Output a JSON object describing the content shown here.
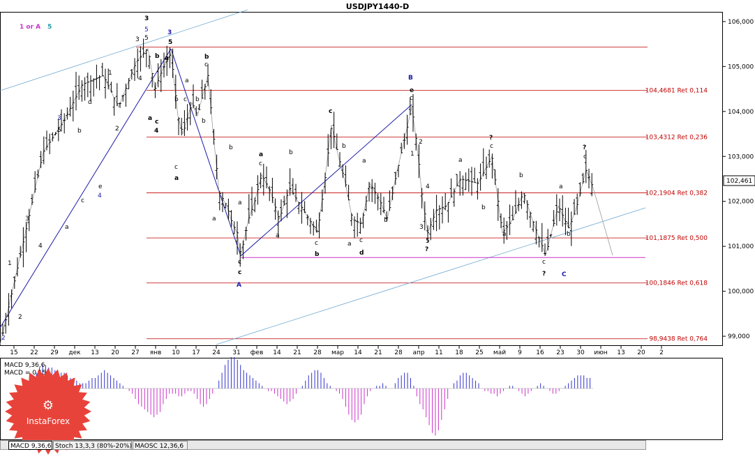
{
  "window": {
    "title": "USDJPY1440-D"
  },
  "legend_topleft": {
    "label1": "1 or A",
    "label2": "5"
  },
  "chart_data": {
    "type": "candlestick",
    "title": "USDJPY1440-D",
    "ylim": [
      98.8,
      106.2
    ],
    "y_ticks": [
      "106,000",
      "105,000",
      "104,000",
      "103,000",
      "102,000",
      "101,000",
      "100,000",
      "99,000"
    ],
    "y_tick_values": [
      106,
      105,
      104,
      103,
      102,
      101,
      100,
      99
    ],
    "current_price": "102,461",
    "current_value": 102.461,
    "x_ticks": [
      "15",
      "22",
      "29",
      "дек",
      "13",
      "20",
      "27",
      "янв",
      "10",
      "17",
      "24",
      "31",
      "фев",
      "14",
      "21",
      "28",
      "мар",
      "14",
      "21",
      "28",
      "апр",
      "11",
      "18",
      "25",
      "май",
      "9",
      "16",
      "23",
      "30",
      "июн",
      "13",
      "20",
      "2"
    ],
    "retracements": [
      {
        "value": 105.43,
        "label": ""
      },
      {
        "value": 104.4681,
        "label": "104,4681 Ret 0,114"
      },
      {
        "value": 103.4312,
        "label": "103,4312 Ret 0,236"
      },
      {
        "value": 102.1904,
        "label": "102,1904 Ret 0,382"
      },
      {
        "value": 101.1875,
        "label": "101,1875 Ret 0,500"
      },
      {
        "value": 100.1846,
        "label": "100,1846 Ret 0,618"
      },
      {
        "value": 98.9438,
        "label": "98,9438 Ret 0,764"
      }
    ],
    "support_line": 100.75,
    "wave_path_values": [
      [
        0,
        98.8
      ],
      [
        32,
        101.0
      ],
      [
        62,
        103.1
      ],
      [
        92,
        103.8
      ],
      [
        118,
        104.6
      ],
      [
        148,
        104.8
      ],
      [
        170,
        104.1
      ],
      [
        195,
        105.1
      ],
      [
        212,
        105.4
      ],
      [
        222,
        104.5
      ],
      [
        232,
        104.9
      ],
      [
        245,
        105.3
      ],
      [
        255,
        103.9
      ],
      [
        262,
        103.5
      ],
      [
        275,
        104.2
      ],
      [
        283,
        103.9
      ],
      [
        298,
        104.8
      ],
      [
        305,
        103.6
      ],
      [
        314,
        102.2
      ],
      [
        325,
        101.9
      ],
      [
        333,
        101.5
      ],
      [
        340,
        101.3
      ],
      [
        345,
        100.8
      ],
      [
        356,
        101.6
      ],
      [
        365,
        102.0
      ],
      [
        375,
        102.6
      ],
      [
        388,
        102.2
      ],
      [
        400,
        101.6
      ],
      [
        415,
        102.3
      ],
      [
        435,
        101.8
      ],
      [
        455,
        101.3
      ],
      [
        465,
        102.4
      ],
      [
        475,
        103.7
      ],
      [
        485,
        103.0
      ],
      [
        495,
        102.4
      ],
      [
        505,
        101.6
      ],
      [
        518,
        101.5
      ],
      [
        530,
        102.4
      ],
      [
        545,
        102.0
      ],
      [
        555,
        101.6
      ],
      [
        568,
        102.6
      ],
      [
        580,
        103.4
      ],
      [
        590,
        104.1
      ],
      [
        598,
        103.2
      ],
      [
        605,
        102.1
      ],
      [
        613,
        101.3
      ],
      [
        625,
        101.8
      ],
      [
        640,
        101.9
      ],
      [
        660,
        102.5
      ],
      [
        685,
        102.4
      ],
      [
        705,
        103.0
      ],
      [
        720,
        101.3
      ],
      [
        735,
        101.6
      ],
      [
        750,
        102.2
      ],
      [
        765,
        101.5
      ],
      [
        782,
        100.8
      ],
      [
        800,
        101.9
      ],
      [
        815,
        101.4
      ],
      [
        825,
        101.8
      ],
      [
        840,
        102.7
      ],
      [
        850,
        102.3
      ],
      [
        878,
        100.8
      ]
    ],
    "macd": {
      "label": "MACD 9,36,6",
      "signal_label": "MACD = 0,15",
      "value": 0.15
    },
    "macd_values": [
      0.05,
      0.1,
      0.1,
      0.2,
      0.25,
      0.3,
      0.4,
      0.45,
      0.45,
      0.4,
      0.4,
      0.35,
      0.3,
      0.3,
      0.3,
      0.25,
      0.2,
      0.2,
      0.15,
      0.1,
      0.1,
      0.1,
      0.15,
      0.2,
      0.2,
      0.25,
      0.3,
      0.35,
      0.3,
      0.25,
      0.2,
      0.15,
      0.1,
      0.05,
      0,
      -0.05,
      -0.1,
      -0.2,
      -0.3,
      -0.35,
      -0.4,
      -0.45,
      -0.5,
      -0.55,
      -0.5,
      -0.45,
      -0.3,
      -0.2,
      -0.1,
      -0.1,
      -0.1,
      -0.15,
      -0.15,
      -0.1,
      -0.05,
      -0.05,
      -0.1,
      -0.2,
      -0.3,
      -0.35,
      -0.3,
      -0.2,
      -0.1,
      0,
      0.15,
      0.3,
      0.45,
      0.55,
      0.6,
      0.6,
      0.55,
      0.45,
      0.35,
      0.3,
      0.25,
      0.2,
      0.15,
      0.1,
      0.05,
      0,
      -0.05,
      -0.05,
      -0.1,
      -0.15,
      -0.2,
      -0.25,
      -0.3,
      -0.25,
      -0.2,
      -0.1,
      0,
      0.05,
      0.15,
      0.25,
      0.3,
      0.35,
      0.35,
      0.3,
      0.2,
      0.1,
      0.05,
      0,
      -0.05,
      -0.1,
      -0.2,
      -0.35,
      -0.5,
      -0.6,
      -0.65,
      -0.6,
      -0.5,
      -0.3,
      -0.15,
      -0.05,
      0,
      0.05,
      0.05,
      0.1,
      0.05,
      0,
      0,
      0.1,
      0.2,
      0.25,
      0.3,
      0.3,
      0.2,
      0.05,
      -0.15,
      -0.3,
      -0.4,
      -0.55,
      -0.7,
      -0.85,
      -0.9,
      -0.8,
      -0.6,
      -0.4,
      -0.2,
      0,
      0.1,
      0.15,
      0.25,
      0.3,
      0.3,
      0.25,
      0.2,
      0.15,
      0.1,
      0,
      -0.05,
      -0.05,
      -0.1,
      -0.1,
      -0.15,
      -0.1,
      -0.05,
      0,
      0.05,
      0.05,
      0,
      -0.05,
      -0.1,
      -0.15,
      -0.1,
      -0.05,
      0,
      0.05,
      0.1,
      0.05,
      0,
      -0.05,
      -0.1,
      -0.1,
      -0.05,
      0,
      0.05,
      0.1,
      0.15,
      0.2,
      0.25,
      0.25,
      0.25,
      0.2,
      0.2
    ]
  },
  "wave_labels": [
    "1",
    "2",
    "3",
    "4",
    "5",
    "a",
    "b",
    "c",
    "d",
    "e",
    "?",
    "A",
    "B",
    "C"
  ],
  "indicator_tabs": [
    {
      "label": "MACD 9,36,6"
    },
    {
      "label": "Stoch 13,3,3 (80%-20%)"
    },
    {
      "label": "MAOSC 12,36,6"
    }
  ],
  "logo": {
    "text": "InstaForex",
    "color": "#e8433a"
  },
  "colors": {
    "retracement": "#c00000",
    "wave_blue": "#1a1aa8",
    "support": "#cc33cc",
    "trend_light": "#6fa8d0",
    "macd": "#cc33cc",
    "macd_pos": "#3333cc"
  }
}
